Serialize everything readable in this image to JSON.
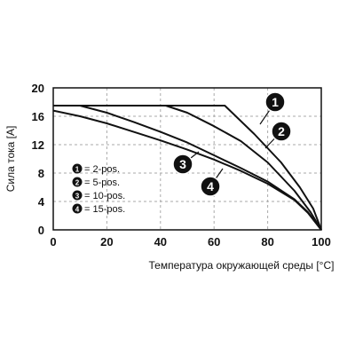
{
  "chart_data": {
    "type": "line",
    "title": "",
    "xlabel": "Температура окружающей среды [°C]",
    "ylabel": "Сила тока [A]",
    "xlim": [
      0,
      100
    ],
    "ylim": [
      0,
      20
    ],
    "x_ticks": [
      "0",
      "20",
      "40",
      "60",
      "80",
      "100"
    ],
    "y_ticks": [
      "0",
      "4",
      "8",
      "12",
      "16",
      "20"
    ],
    "grid": true,
    "legend_position": "left",
    "colors": {
      "line": "#111111",
      "grid": "#aaaaaa",
      "badge": "#111111",
      "background": "#ffffff"
    },
    "series": [
      {
        "name": "= 2-pos.",
        "badge": "1",
        "x": [
          0,
          50,
          64,
          75,
          85,
          92,
          97,
          100
        ],
        "y": [
          17.5,
          17.5,
          17.5,
          13.5,
          9.5,
          6,
          3,
          0
        ]
      },
      {
        "name": "= 5-pos.",
        "badge": "2",
        "x": [
          0,
          42,
          50,
          60,
          70,
          80,
          90,
          96,
          100
        ],
        "y": [
          17.5,
          17.5,
          16.5,
          14.6,
          12.5,
          9.5,
          5.5,
          2.5,
          0
        ]
      },
      {
        "name": "= 10-pos.",
        "badge": "3",
        "x": [
          0,
          10,
          20,
          30,
          40,
          50,
          60,
          70,
          80,
          90,
          95,
          100
        ],
        "y": [
          17.5,
          17.5,
          16.5,
          15.2,
          13.8,
          12.3,
          10.5,
          8.7,
          6.8,
          4.3,
          2.5,
          0
        ]
      },
      {
        "name": "= 15-pos.",
        "badge": "4",
        "x": [
          0,
          10,
          20,
          30,
          40,
          50,
          60,
          70,
          80,
          90,
          95,
          100
        ],
        "y": [
          16.8,
          16,
          15,
          13.8,
          12.6,
          11.3,
          9.9,
          8.3,
          6.5,
          4.2,
          2.4,
          0
        ]
      }
    ]
  }
}
